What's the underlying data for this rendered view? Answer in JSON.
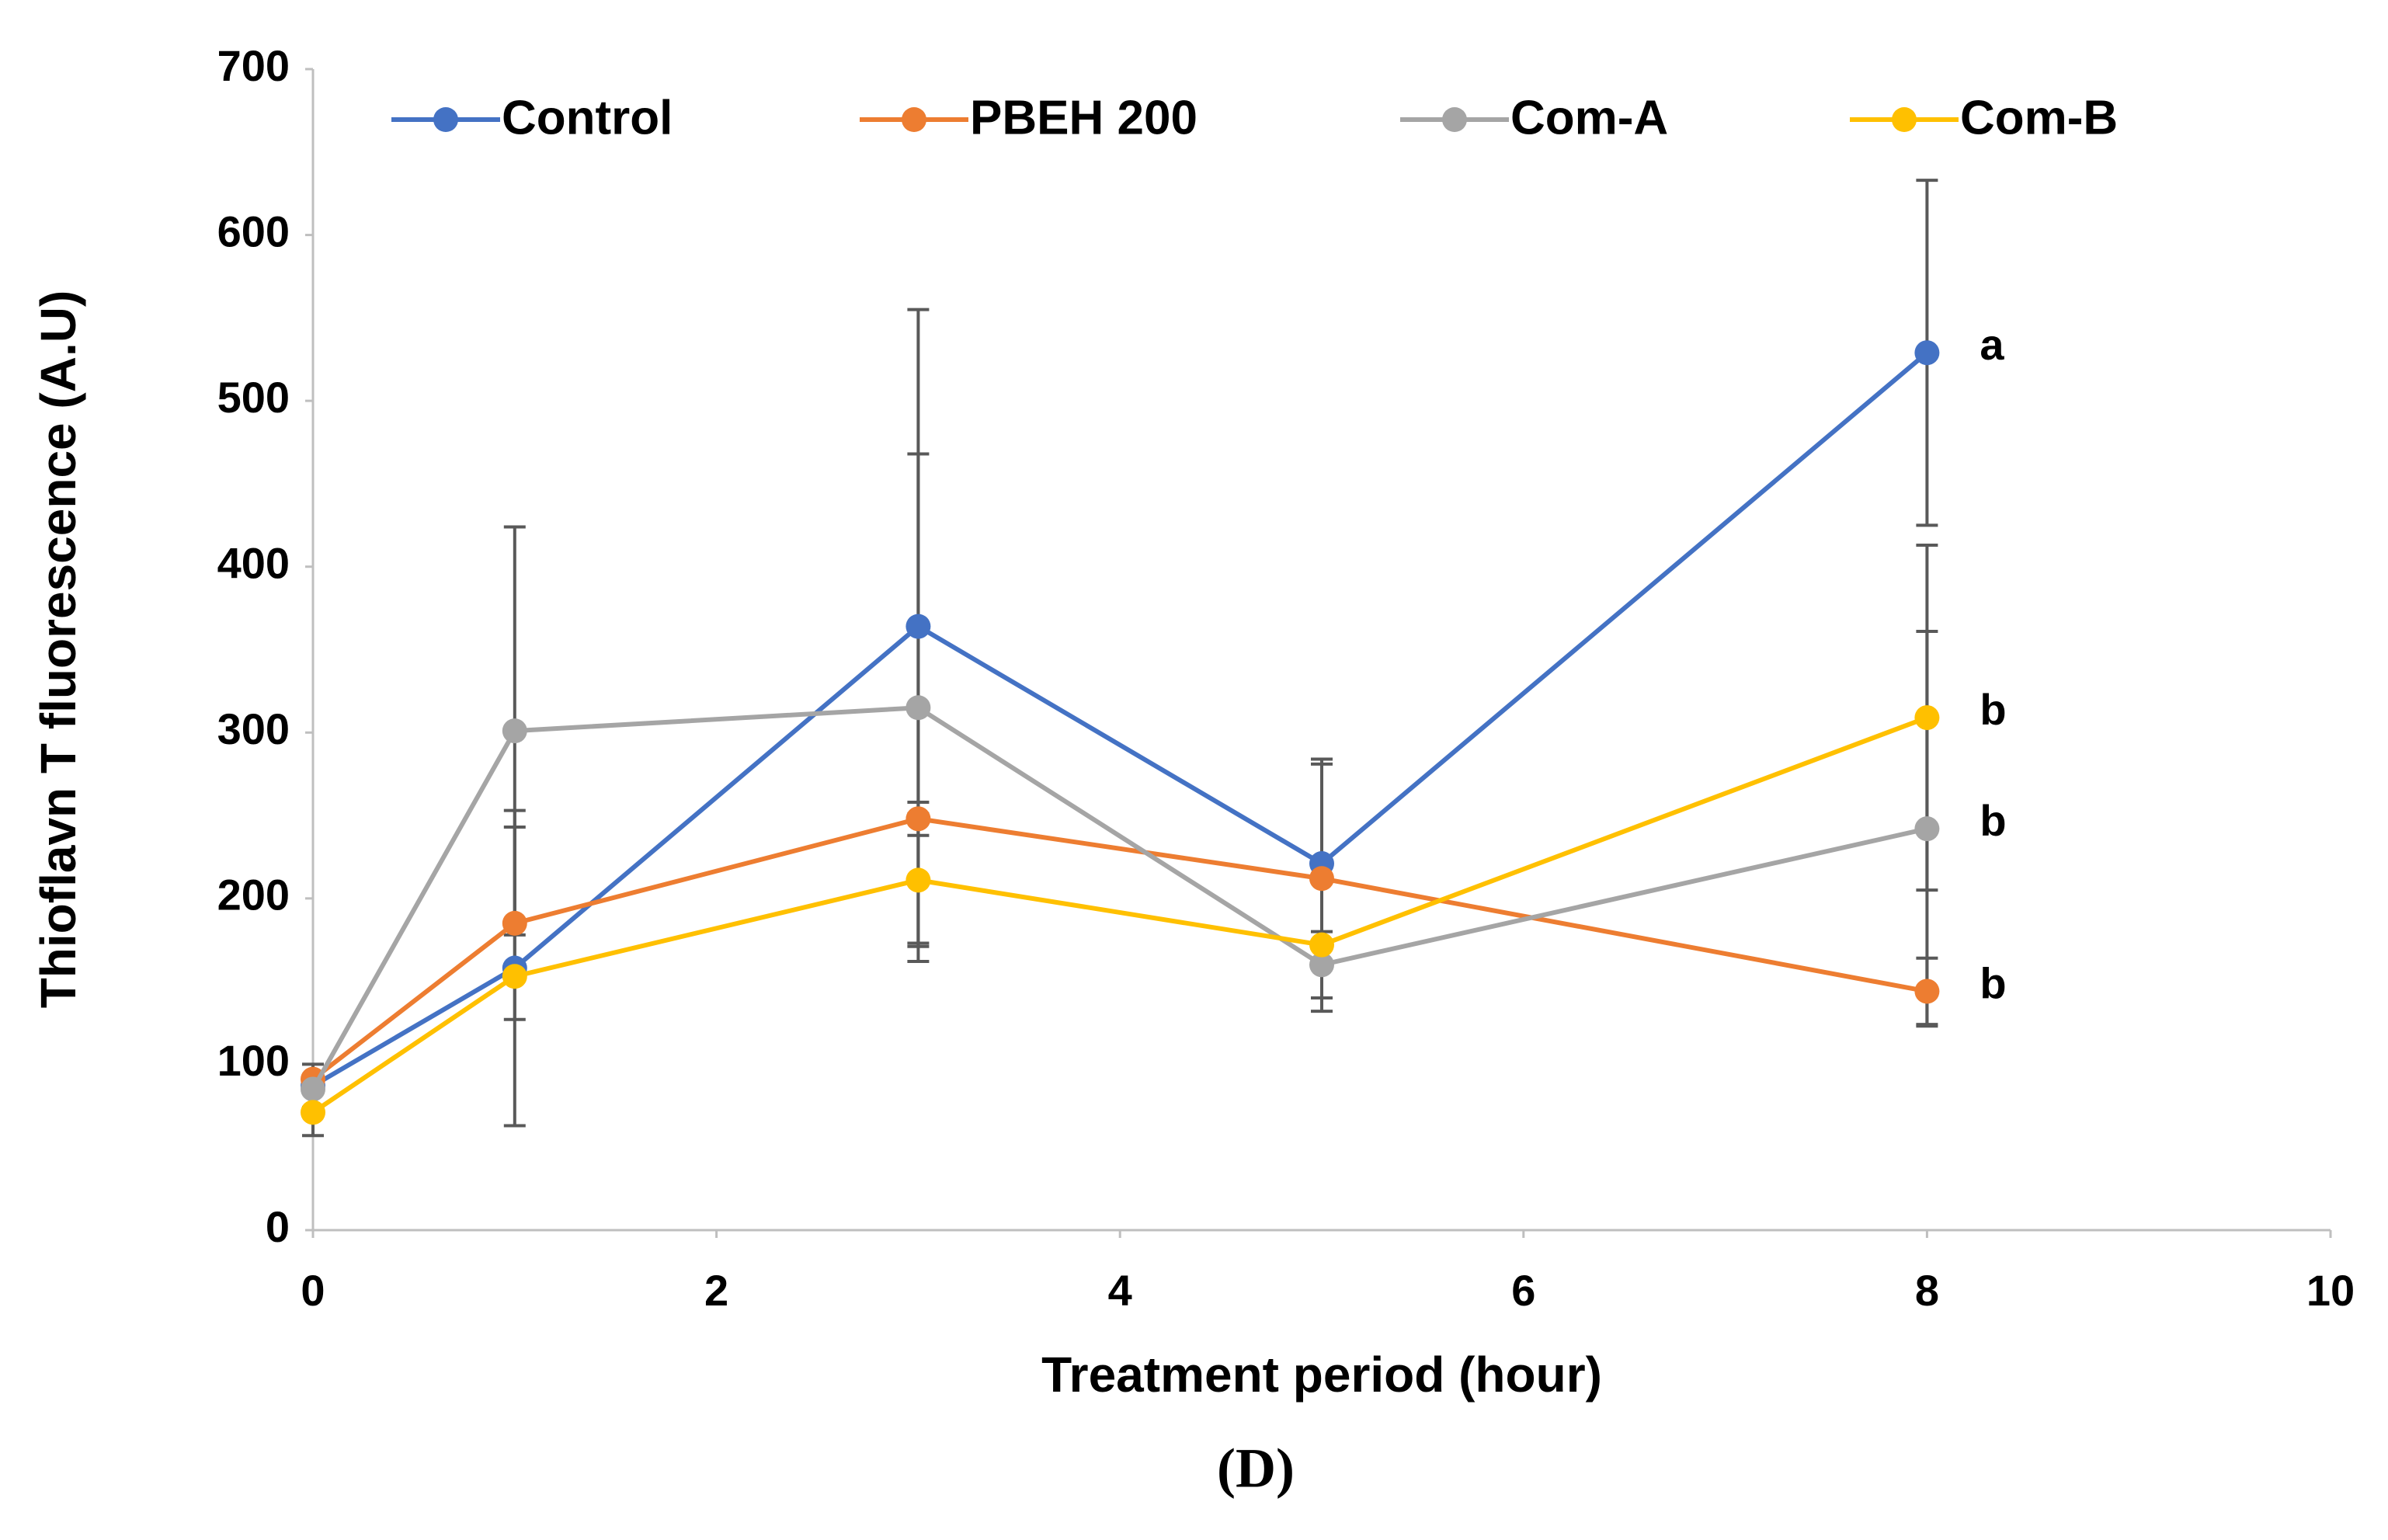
{
  "chart_data": {
    "type": "line",
    "caption": "(D)",
    "x_label": "Treatment period (hour)",
    "y_label": "Thioflavn T fluorescence (A.U)",
    "xlim": [
      0,
      10
    ],
    "xticks": [
      0,
      2,
      4,
      6,
      8,
      10
    ],
    "ylim": [
      0,
      700
    ],
    "yticks": [
      0,
      100,
      200,
      300,
      400,
      500,
      600,
      700
    ],
    "x": [
      0,
      1,
      3,
      5,
      8
    ],
    "error_color": "#595959",
    "series": [
      {
        "name": "Control",
        "color": "#4472c4",
        "values": [
          87,
          158,
          364,
          221,
          529
        ],
        "errors": [
          13,
          95,
          191,
          60,
          104
        ],
        "annotation": "a"
      },
      {
        "name": "PBEH 200",
        "color": "#ed7d31",
        "values": [
          91,
          185,
          248,
          212,
          144
        ],
        "errors": [
          null,
          58,
          10,
          72,
          20
        ],
        "annotation": "b"
      },
      {
        "name": "Com-A",
        "color": "#a5a5a5",
        "values": [
          85,
          301,
          315,
          160,
          242
        ],
        "errors": [
          null,
          123,
          153,
          20,
          119
        ],
        "annotation": "b"
      },
      {
        "name": "Com-B",
        "color": "#ffc000",
        "values": [
          71,
          153,
          211,
          172,
          309
        ],
        "errors": [
          14,
          null,
          40,
          40,
          104
        ],
        "annotation": "b"
      }
    ]
  }
}
